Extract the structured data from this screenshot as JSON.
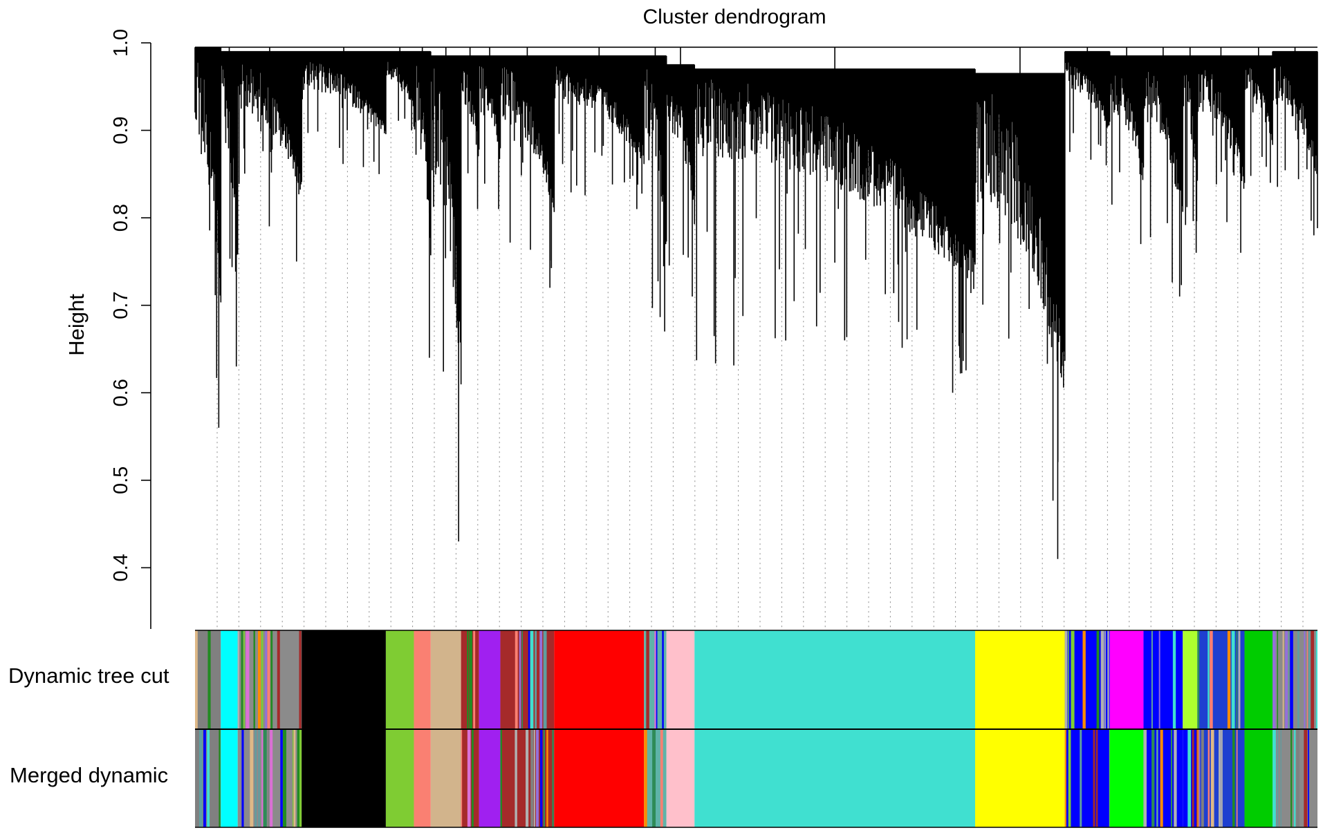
{
  "chart_data": {
    "type": "dendrogram",
    "title": "Cluster dendrogram",
    "xlabel": "",
    "ylabel": "Height",
    "ylim": [
      0.33,
      1.0
    ],
    "yticks": [
      0.4,
      0.5,
      0.6,
      0.7,
      0.8,
      0.9,
      1.0
    ],
    "ytick_labels": [
      "0.4",
      "0.5",
      "0.6",
      "0.7",
      "0.8",
      "0.9",
      "1.0"
    ],
    "leaf_count": 1000,
    "merge_height": 0.995,
    "guide_lines": "dotted",
    "clusters": [
      {
        "start": 0,
        "end": 23,
        "root": 0.995,
        "tip": 0.56,
        "top": 0.99,
        "color": "#808080",
        "merged_color": "#808080"
      },
      {
        "start": 23,
        "end": 38,
        "root": 0.99,
        "tip": 0.63,
        "top": 0.985,
        "color": "#00FFFF",
        "merged_color": "#00FFFF"
      },
      {
        "start": 38,
        "end": 95,
        "root": 0.99,
        "tip": 0.75,
        "top": 0.985,
        "color": "#8B8B8B",
        "merged_color": "#8B8B8B"
      },
      {
        "start": 95,
        "end": 170,
        "root": 0.99,
        "tip": 0.85,
        "top": 0.985,
        "color": "#000000",
        "merged_color": "#000000"
      },
      {
        "start": 170,
        "end": 195,
        "root": 0.99,
        "tip": 0.9,
        "top": 0.985,
        "color": "#7FCC33",
        "merged_color": "#7FCC33"
      },
      {
        "start": 195,
        "end": 210,
        "root": 0.99,
        "tip": 0.64,
        "top": 0.985,
        "color": "#FA8072",
        "merged_color": "#FA8072"
      },
      {
        "start": 210,
        "end": 237,
        "root": 0.985,
        "tip": 0.43,
        "top": 0.98,
        "color": "#D2B48C",
        "merged_color": "#D2B48C"
      },
      {
        "start": 237,
        "end": 253,
        "root": 0.985,
        "tip": 0.81,
        "top": 0.98,
        "color": "#A52A2A",
        "merged_color": "#A52A2A"
      },
      {
        "start": 253,
        "end": 272,
        "root": 0.985,
        "tip": 0.81,
        "top": 0.98,
        "color": "#A020F0",
        "merged_color": "#A020F0"
      },
      {
        "start": 272,
        "end": 320,
        "root": 0.985,
        "tip": 0.72,
        "top": 0.98,
        "color": "#A52A2A",
        "merged_color": "#A52A2A"
      },
      {
        "start": 320,
        "end": 400,
        "root": 0.985,
        "tip": 0.81,
        "top": 0.98,
        "color": "#FF0000",
        "merged_color": "#FF0000"
      },
      {
        "start": 400,
        "end": 420,
        "root": 0.985,
        "tip": 0.67,
        "top": 0.98,
        "color": "#5FB3A8",
        "merged_color": "#5FB3A8"
      },
      {
        "start": 420,
        "end": 445,
        "root": 0.975,
        "tip": 0.71,
        "top": 0.97,
        "color": "#FFC0CB",
        "merged_color": "#FFC0CB"
      },
      {
        "start": 445,
        "end": 695,
        "root": 0.97,
        "tip": 0.6,
        "top": 0.965,
        "color": "#40E0D0",
        "merged_color": "#40E0D0"
      },
      {
        "start": 695,
        "end": 775,
        "root": 0.965,
        "tip": 0.41,
        "top": 0.96,
        "color": "#FFFF00",
        "merged_color": "#FFFF00"
      },
      {
        "start": 775,
        "end": 815,
        "root": 0.99,
        "tip": 0.86,
        "top": 0.985,
        "color": "#0000FF",
        "merged_color": "#0000FF"
      },
      {
        "start": 815,
        "end": 845,
        "root": 0.985,
        "tip": 0.77,
        "top": 0.98,
        "color": "#FF00FF",
        "merged_color": "#00FF00"
      },
      {
        "start": 845,
        "end": 880,
        "root": 0.985,
        "tip": 0.71,
        "top": 0.98,
        "color": "#0000FF",
        "merged_color": "#0000FF"
      },
      {
        "start": 880,
        "end": 893,
        "root": 0.985,
        "tip": 0.76,
        "top": 0.98,
        "color": "#ADFF2F",
        "merged_color": "#0000FF"
      },
      {
        "start": 893,
        "end": 935,
        "root": 0.985,
        "tip": 0.76,
        "top": 0.98,
        "color": "#1E3FD0",
        "merged_color": "#1E3FD0"
      },
      {
        "start": 935,
        "end": 960,
        "root": 0.985,
        "tip": 0.84,
        "top": 0.98,
        "color": "#00CC00",
        "merged_color": "#00CC00"
      },
      {
        "start": 960,
        "end": 1000,
        "root": 0.99,
        "tip": 0.78,
        "top": 0.985,
        "color": "#8A8A8A",
        "merged_color": "#8A8A8A"
      }
    ],
    "color_rows": [
      {
        "label": "Dynamic tree cut",
        "key": "color"
      },
      {
        "label": "Merged dynamic",
        "key": "merged_color"
      }
    ],
    "mixed_palette": [
      "#40E0D0",
      "#5F9EA0",
      "#808080",
      "#9370DB",
      "#FA8072",
      "#7FCC33",
      "#0000FF",
      "#A52A2A",
      "#DEB887",
      "#FF8C00",
      "#DA70D6",
      "#228B22",
      "#B0B0B0",
      "#2E8B57"
    ]
  }
}
